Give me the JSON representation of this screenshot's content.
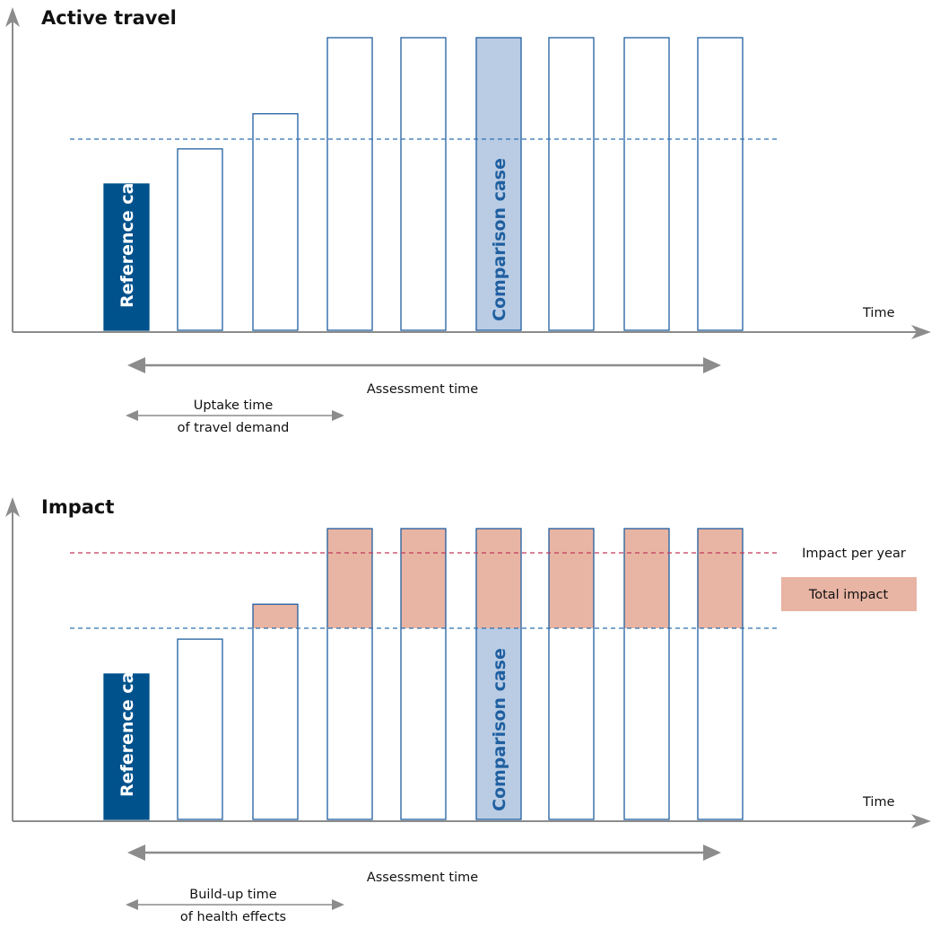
{
  "colors": {
    "axis": "#8c8c8c",
    "bar_outline": "#1f5fa0",
    "reference_fill": "#00528c",
    "comparison_fill": "#b9cce4",
    "impact_fill": "#e8b4a3",
    "baseline_dash": "#2e6fb0",
    "impact_line": "#c4395a"
  },
  "top_panel": {
    "title": "Active travel",
    "x_axis_label": "Time",
    "reference_label": "Reference case",
    "comparison_label": "Comparison case",
    "assessment_label": "Assessment time",
    "uptake_label_line1": "Uptake time",
    "uptake_label_line2": "of travel demand",
    "bar_levels": [
      0.5,
      0.62,
      0.74,
      1,
      1,
      1,
      1,
      1,
      1
    ],
    "reference_bar_index": 0,
    "comparison_bar_index": 5
  },
  "bottom_panel": {
    "title": "Impact",
    "x_axis_label": "Time",
    "reference_label": "Reference case",
    "comparison_label": "Comparison case",
    "assessment_label": "Assessment time",
    "buildup_label_line1": "Build-up time",
    "buildup_label_line2": "of health effects",
    "impact_per_year_label": "Impact per year",
    "total_impact_label": "Total impact",
    "bar_levels": [
      0.5,
      0.62,
      0.74,
      1,
      1,
      1,
      1,
      1,
      1
    ],
    "reference_bar_index": 0,
    "comparison_bar_index": 5
  }
}
